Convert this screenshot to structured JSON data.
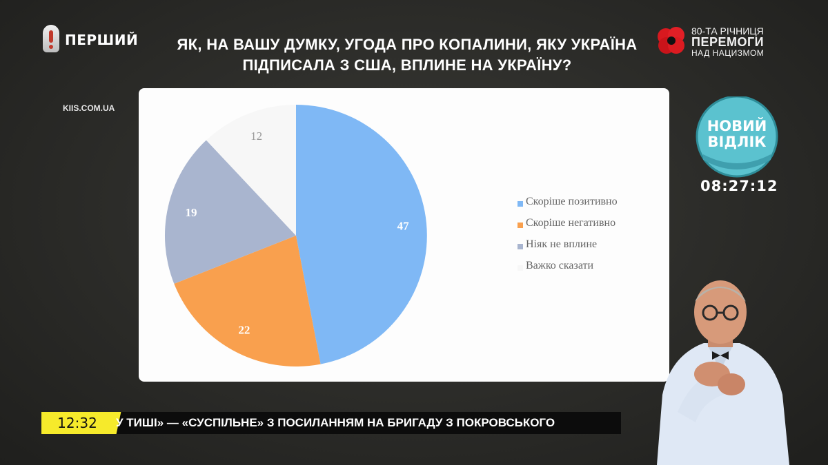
{
  "channel": {
    "name": "ПЕРШИЙ"
  },
  "question": {
    "line1": "ЯК, НА ВАШУ ДУМКУ, УГОДА ПРО КОПАЛИНИ, ЯКУ УКРАЇНА",
    "line2": "ПІДПИСАЛА З США, ВПЛИНЕ НА УКРАЇНУ?"
  },
  "source": "KIIS.COM.UA",
  "victory_badge": {
    "line1": "80-ТА РІЧНИЦЯ",
    "line2": "ПЕРЕМОГИ",
    "line3": "НАД НАЦИЗМОМ"
  },
  "show_logo": {
    "line1": "НОВИЙ",
    "line2": "ВІДЛІК"
  },
  "clock": "08:27:12",
  "ticker": {
    "time": "12:32",
    "text": "У ТИШІ» — «СУСПІЛЬНЕ» З ПОСИЛАННЯМ НА БРИГАДУ З ПОКРОВСЬКОГО"
  },
  "chart_data": {
    "type": "pie",
    "categories": [
      "Скоріше позитивно",
      "Скоріше негативно",
      "Ніяк не вплине",
      "Важко сказати"
    ],
    "values": [
      47,
      22,
      19,
      12
    ],
    "colors": [
      "#7fb8f5",
      "#f9a04e",
      "#a9b5cf",
      "#f7f7f7"
    ],
    "data_labels": [
      "47",
      "22",
      "19",
      "12"
    ],
    "legend_position": "right"
  }
}
